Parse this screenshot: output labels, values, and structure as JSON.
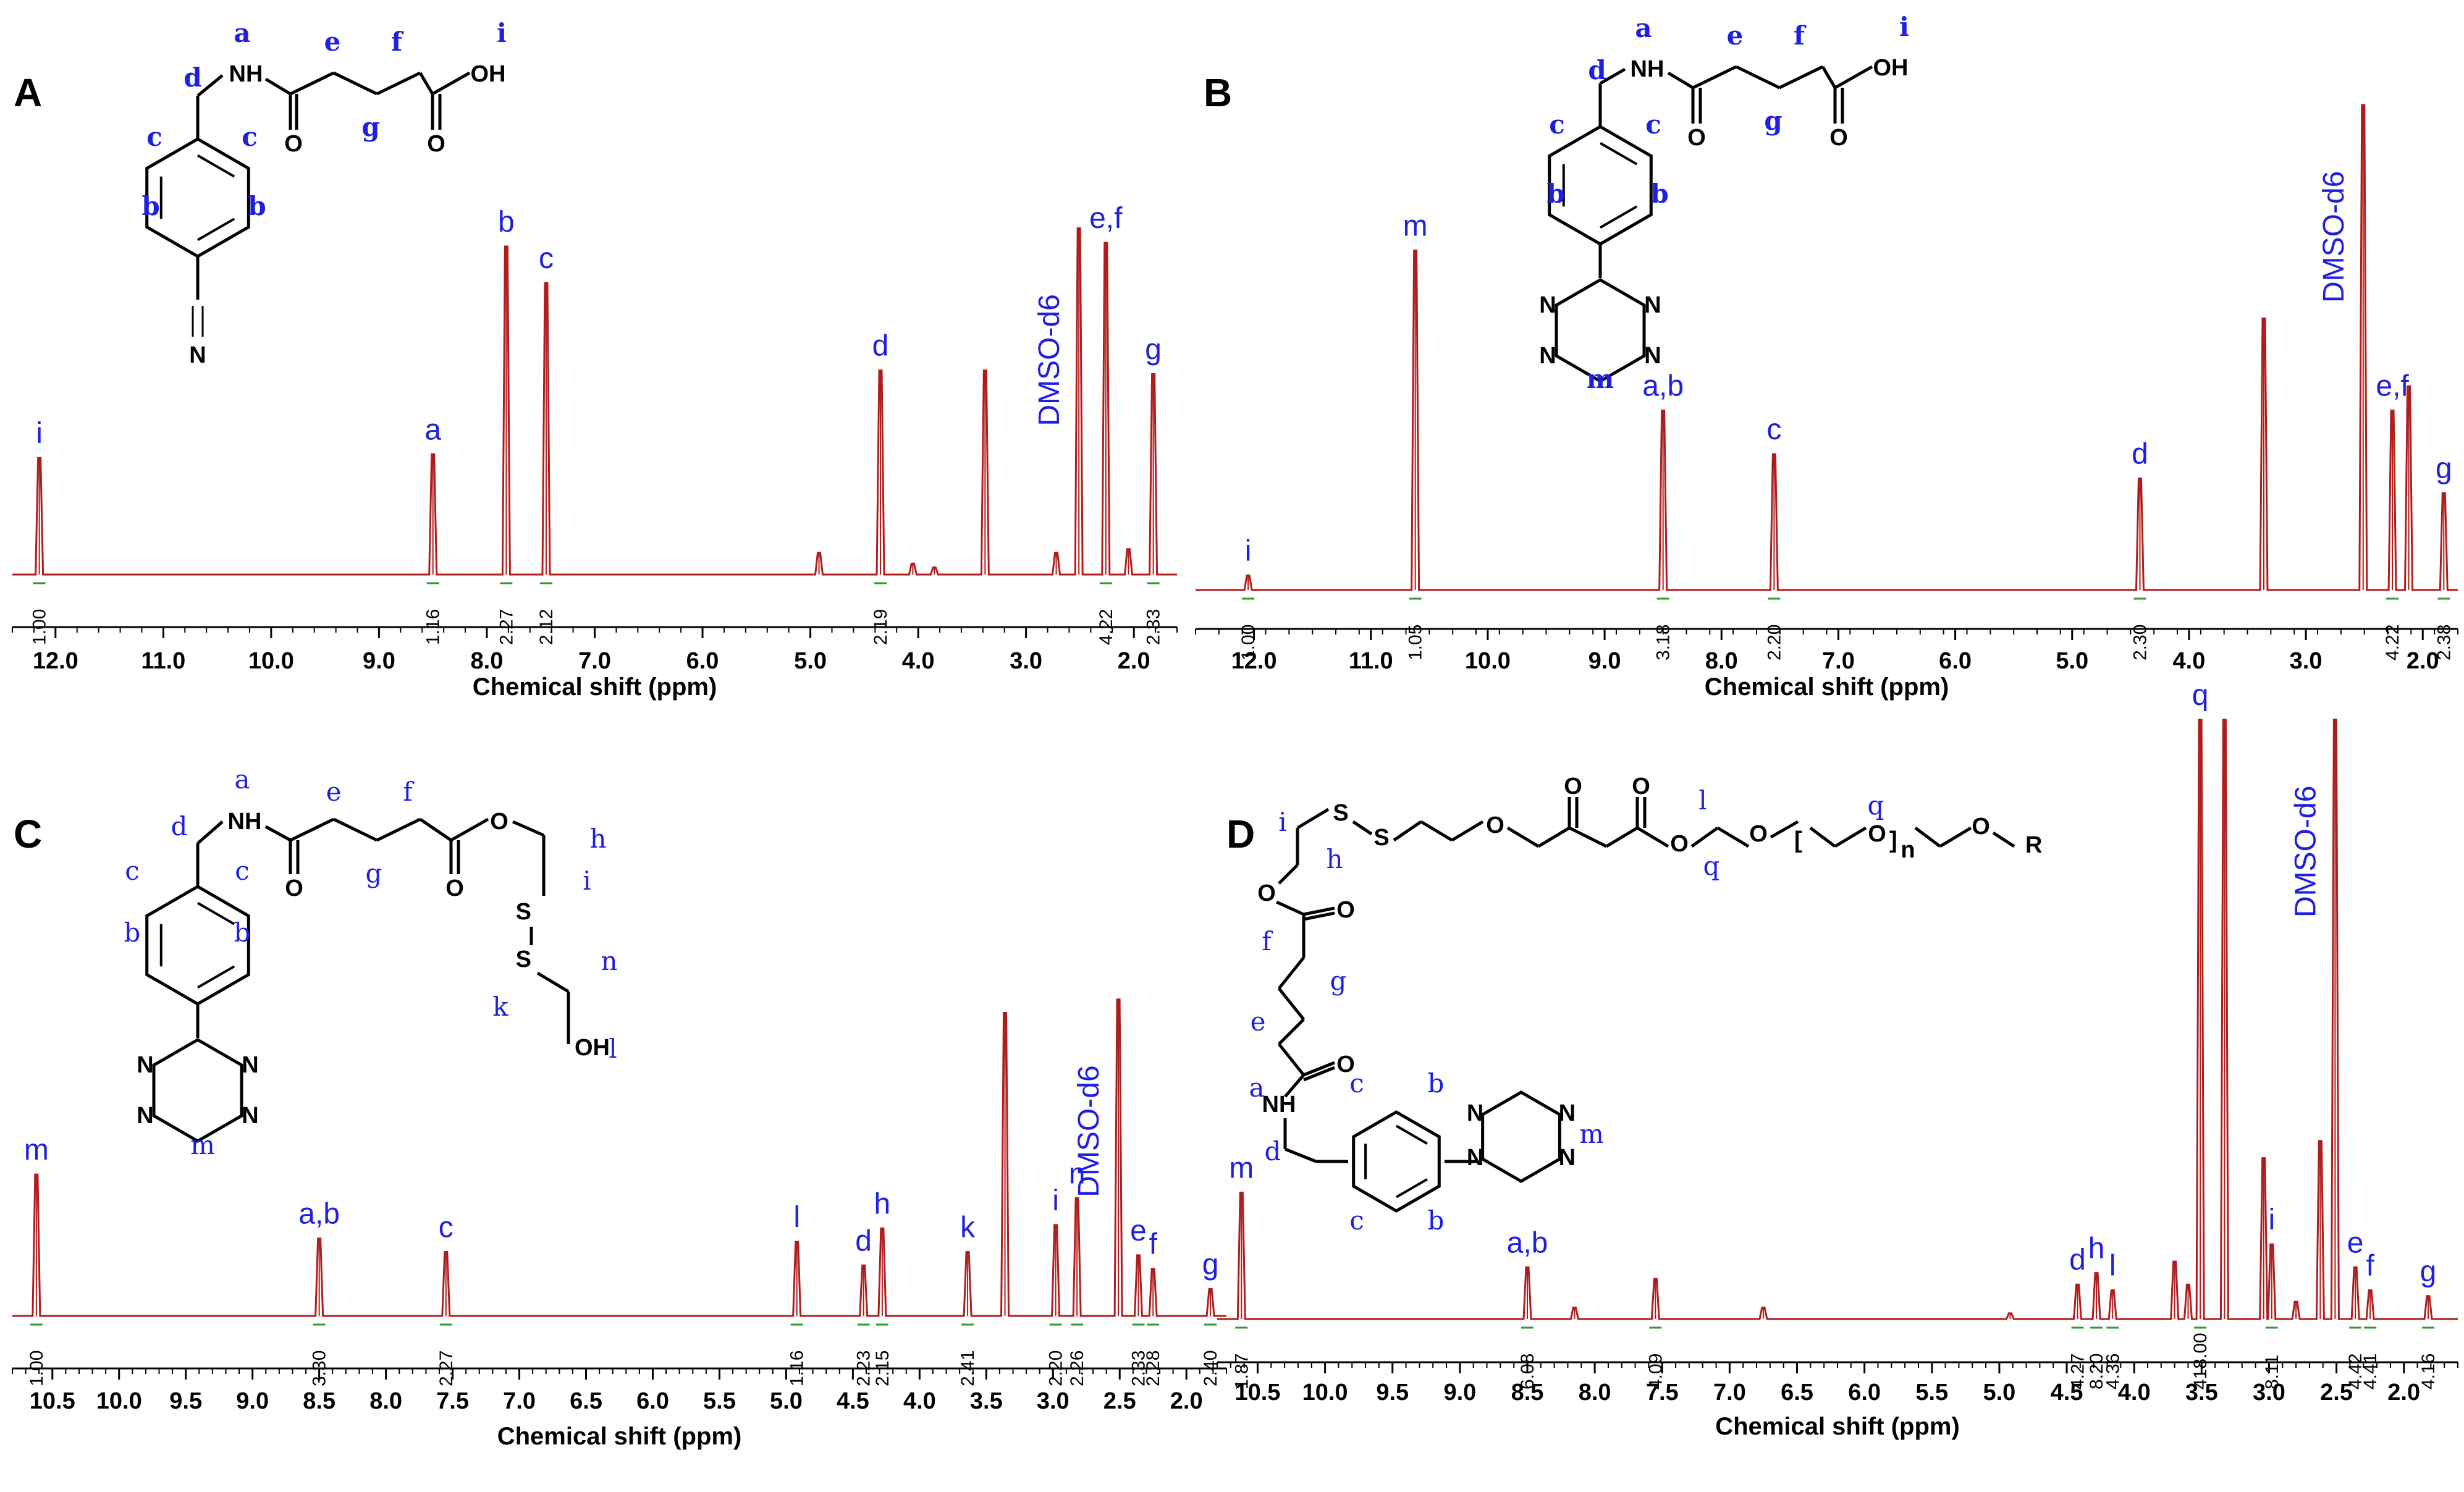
{
  "colors": {
    "spectrum": "#b01c1c",
    "label": "#1f1fe0",
    "integral": "#2f9a2f",
    "axis": "#000000"
  },
  "chart_data": [
    {
      "panel": "A",
      "type": "line",
      "xlabel": "Chemical shift (ppm)",
      "xlim": [
        12.4,
        1.6
      ],
      "x_ticks": [
        "12.0",
        "11.0",
        "10.0",
        "9.0",
        "8.0",
        "7.0",
        "6.0",
        "5.0",
        "4.0",
        "3.0",
        "2.0"
      ],
      "peaks": [
        {
          "x": 12.15,
          "h": 0.32,
          "label": "i"
        },
        {
          "x": 8.5,
          "h": 0.33,
          "label": "a"
        },
        {
          "x": 7.82,
          "h": 0.9,
          "label": "b"
        },
        {
          "x": 7.45,
          "h": 0.8,
          "label": "c"
        },
        {
          "x": 4.92,
          "h": 0.06,
          "label": ""
        },
        {
          "x": 4.35,
          "h": 0.56,
          "label": "d"
        },
        {
          "x": 4.05,
          "h": 0.03,
          "label": ""
        },
        {
          "x": 3.85,
          "h": 0.02,
          "label": ""
        },
        {
          "x": 3.38,
          "h": 0.56,
          "label": ""
        },
        {
          "x": 2.72,
          "h": 0.06,
          "label": ""
        },
        {
          "x": 2.51,
          "h": 0.95,
          "label": "DMSO-d6"
        },
        {
          "x": 2.26,
          "h": 0.91,
          "label": "e,f"
        },
        {
          "x": 2.05,
          "h": 0.07,
          "label": ""
        },
        {
          "x": 1.82,
          "h": 0.55,
          "label": "g"
        }
      ],
      "integrals": [
        {
          "x": 12.15,
          "value": "1.00"
        },
        {
          "x": 8.5,
          "value": "1.16"
        },
        {
          "x": 7.82,
          "value": "2.27"
        },
        {
          "x": 7.45,
          "value": "2.12"
        },
        {
          "x": 4.35,
          "value": "2.19"
        },
        {
          "x": 2.26,
          "value": "4.22"
        },
        {
          "x": 1.82,
          "value": "2.33"
        }
      ],
      "structure_labels": [
        "a",
        "d",
        "e",
        "f",
        "i",
        "c",
        "c",
        "g",
        "b",
        "b"
      ],
      "atoms": [
        "NH",
        "OH",
        "O",
        "O",
        "N"
      ]
    },
    {
      "panel": "B",
      "type": "line",
      "xlabel": "Chemical shift (ppm)",
      "xlim": [
        12.5,
        1.7
      ],
      "x_ticks": [
        "12.0",
        "11.0",
        "10.0",
        "9.0",
        "8.0",
        "7.0",
        "6.0",
        "5.0",
        "4.0",
        "3.0",
        "2.0"
      ],
      "peaks": [
        {
          "x": 12.05,
          "h": 0.03,
          "label": "i"
        },
        {
          "x": 10.62,
          "h": 0.7,
          "label": "m"
        },
        {
          "x": 8.5,
          "h": 0.37,
          "label": "a,b"
        },
        {
          "x": 7.55,
          "h": 0.28,
          "label": "c"
        },
        {
          "x": 4.42,
          "h": 0.23,
          "label": "d"
        },
        {
          "x": 3.36,
          "h": 0.56,
          "label": ""
        },
        {
          "x": 2.51,
          "h": 1.0,
          "label": "DMSO-d6"
        },
        {
          "x": 2.26,
          "h": 0.37,
          "label": "e,f"
        },
        {
          "x": 2.12,
          "h": 0.42,
          "label": ""
        },
        {
          "x": 1.82,
          "h": 0.2,
          "label": "g"
        }
      ],
      "integrals": [
        {
          "x": 12.05,
          "value": "1.00"
        },
        {
          "x": 10.62,
          "value": "1.05"
        },
        {
          "x": 8.5,
          "value": "3.18"
        },
        {
          "x": 7.55,
          "value": "2.20"
        },
        {
          "x": 4.42,
          "value": "2.30"
        },
        {
          "x": 2.26,
          "value": "4.22"
        },
        {
          "x": 1.82,
          "value": "2.38"
        }
      ],
      "structure_labels": [
        "a",
        "d",
        "e",
        "f",
        "i",
        "c",
        "c",
        "g",
        "b",
        "b",
        "m"
      ],
      "atoms": [
        "NH",
        "OH",
        "O",
        "O",
        "N",
        "N",
        "N",
        "N"
      ]
    },
    {
      "panel": "C",
      "type": "line",
      "xlabel": "Chemical shift (ppm)",
      "xlim": [
        10.8,
        1.7
      ],
      "x_ticks": [
        "10.5",
        "10.0",
        "9.5",
        "9.0",
        "8.5",
        "8.0",
        "7.5",
        "7.0",
        "6.5",
        "6.0",
        "5.5",
        "5.0",
        "4.5",
        "4.0",
        "3.5",
        "3.0",
        "2.5",
        "2.0"
      ],
      "peaks": [
        {
          "x": 10.62,
          "h": 0.42,
          "label": "m"
        },
        {
          "x": 8.5,
          "h": 0.23,
          "label": "a,b"
        },
        {
          "x": 7.55,
          "h": 0.19,
          "label": "c"
        },
        {
          "x": 4.92,
          "h": 0.22,
          "label": "l"
        },
        {
          "x": 4.42,
          "h": 0.15,
          "label": "d"
        },
        {
          "x": 4.28,
          "h": 0.26,
          "label": "h"
        },
        {
          "x": 3.64,
          "h": 0.19,
          "label": "k"
        },
        {
          "x": 3.36,
          "h": 0.9,
          "label": ""
        },
        {
          "x": 2.98,
          "h": 0.27,
          "label": "i"
        },
        {
          "x": 2.82,
          "h": 0.35,
          "label": "n"
        },
        {
          "x": 2.51,
          "h": 0.94,
          "label": "DMSO-d6"
        },
        {
          "x": 2.36,
          "h": 0.18,
          "label": "e"
        },
        {
          "x": 2.25,
          "h": 0.14,
          "label": "f"
        },
        {
          "x": 1.82,
          "h": 0.08,
          "label": "g"
        }
      ],
      "integrals": [
        {
          "x": 10.62,
          "value": "1.00"
        },
        {
          "x": 8.5,
          "value": "3.30"
        },
        {
          "x": 7.55,
          "value": "2.27"
        },
        {
          "x": 4.92,
          "value": "1.16"
        },
        {
          "x": 4.42,
          "value": "2.23"
        },
        {
          "x": 4.28,
          "value": "2.15"
        },
        {
          "x": 3.64,
          "value": "2.41"
        },
        {
          "x": 2.98,
          "value": "2.20"
        },
        {
          "x": 2.82,
          "value": "2.26"
        },
        {
          "x": 2.36,
          "value": "2.33"
        },
        {
          "x": 2.25,
          "value": "2.28"
        },
        {
          "x": 1.82,
          "value": "2.40"
        }
      ],
      "structure_labels": [
        "a",
        "d",
        "e",
        "f",
        "h",
        "i",
        "g",
        "c",
        "c",
        "b",
        "b",
        "n",
        "k",
        "l",
        "m"
      ],
      "atoms": [
        "NH",
        "O",
        "O",
        "O",
        "S",
        "S",
        "OH",
        "N",
        "N",
        "N",
        "N"
      ]
    },
    {
      "panel": "D",
      "type": "line",
      "xlabel": "Chemical shift (ppm)",
      "xlim": [
        10.8,
        1.6
      ],
      "x_ticks": [
        "10.5",
        "10.0",
        "9.5",
        "9.0",
        "8.5",
        "8.0",
        "7.5",
        "7.0",
        "6.5",
        "6.0",
        "5.5",
        "5.0",
        "4.5",
        "4.0",
        "3.5",
        "3.0",
        "2.5",
        "2.0"
      ],
      "peaks": [
        {
          "x": 10.62,
          "h": 0.22,
          "label": "m"
        },
        {
          "x": 8.5,
          "h": 0.09,
          "label": "a,b"
        },
        {
          "x": 8.15,
          "h": 0.02,
          "label": ""
        },
        {
          "x": 7.55,
          "h": 0.07,
          "label": ""
        },
        {
          "x": 6.75,
          "h": 0.02,
          "label": ""
        },
        {
          "x": 4.92,
          "h": 0.01,
          "label": ""
        },
        {
          "x": 4.42,
          "h": 0.06,
          "label": "d"
        },
        {
          "x": 4.28,
          "h": 0.08,
          "label": "h"
        },
        {
          "x": 4.16,
          "h": 0.05,
          "label": "l"
        },
        {
          "x": 3.7,
          "h": 0.1,
          "label": ""
        },
        {
          "x": 3.6,
          "h": 0.06,
          "label": ""
        },
        {
          "x": 3.51,
          "h": 1.2,
          "label": "q"
        },
        {
          "x": 3.33,
          "h": 1.2,
          "label": ""
        },
        {
          "x": 3.04,
          "h": 0.28,
          "label": ""
        },
        {
          "x": 2.98,
          "h": 0.13,
          "label": "i"
        },
        {
          "x": 2.8,
          "h": 0.03,
          "label": ""
        },
        {
          "x": 2.62,
          "h": 0.31,
          "label": ""
        },
        {
          "x": 2.51,
          "h": 1.2,
          "label": "DMSO-d6"
        },
        {
          "x": 2.36,
          "h": 0.09,
          "label": "e"
        },
        {
          "x": 2.25,
          "h": 0.05,
          "label": "f"
        },
        {
          "x": 1.82,
          "h": 0.04,
          "label": "g"
        }
      ],
      "integrals": [
        {
          "x": 10.62,
          "value": "1.87"
        },
        {
          "x": 8.5,
          "value": "6.08"
        },
        {
          "x": 7.55,
          "value": "4.09"
        },
        {
          "x": 4.42,
          "value": "4.27"
        },
        {
          "x": 4.28,
          "value": "8.20"
        },
        {
          "x": 4.16,
          "value": "4.36"
        },
        {
          "x": 3.51,
          "value": "418.00"
        },
        {
          "x": 2.98,
          "value": "8.11"
        },
        {
          "x": 2.36,
          "value": "4.42"
        },
        {
          "x": 2.25,
          "value": "4.41"
        },
        {
          "x": 1.82,
          "value": "4.16"
        }
      ],
      "structure_labels": [
        "i",
        "h",
        "l",
        "q",
        "q",
        "f",
        "g",
        "e",
        "a",
        "d",
        "c",
        "c",
        "b",
        "b",
        "m"
      ],
      "atoms": [
        "S",
        "S",
        "O",
        "O",
        "O",
        "O",
        "O",
        "O",
        "O",
        "R",
        "O",
        "O",
        "NH",
        "N",
        "N",
        "N",
        "N",
        "n"
      ]
    }
  ]
}
